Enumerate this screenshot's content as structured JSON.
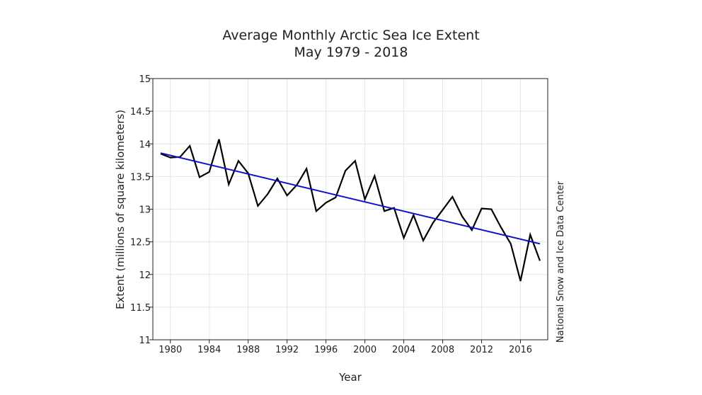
{
  "chart_data": {
    "type": "line",
    "title": "Average Monthly Arctic Sea Ice Extent",
    "subtitle": "May 1979 - 2018",
    "xlabel": "Year",
    "ylabel": "Extent (millions of square kilometers)",
    "credit": "National Snow and Ice Data Center",
    "xlim": [
      1978.2,
      2018.8
    ],
    "ylim": [
      11,
      15
    ],
    "x_ticks": [
      1980,
      1984,
      1988,
      1992,
      1996,
      2000,
      2004,
      2008,
      2012,
      2016
    ],
    "y_ticks": [
      11,
      11.5,
      12,
      12.5,
      13,
      13.5,
      14,
      14.5,
      15
    ],
    "y_tick_labels": [
      "11",
      "11.5",
      "12",
      "12.5",
      "13",
      "13.5",
      "14",
      "14.5",
      "15"
    ],
    "grid": true,
    "series": [
      {
        "name": "Extent",
        "color": "#000000",
        "x": [
          1979,
          1980,
          1981,
          1982,
          1983,
          1984,
          1985,
          1986,
          1987,
          1988,
          1989,
          1990,
          1991,
          1992,
          1993,
          1994,
          1995,
          1996,
          1997,
          1998,
          1999,
          2000,
          2001,
          2002,
          2003,
          2004,
          2005,
          2006,
          2007,
          2008,
          2009,
          2010,
          2011,
          2012,
          2013,
          2014,
          2015,
          2016,
          2017,
          2018
        ],
        "values": [
          13.85,
          13.79,
          13.8,
          13.97,
          13.49,
          13.57,
          14.07,
          13.38,
          13.74,
          13.55,
          13.05,
          13.23,
          13.47,
          13.21,
          13.37,
          13.62,
          12.97,
          13.1,
          13.18,
          13.59,
          13.74,
          13.15,
          13.51,
          12.97,
          13.02,
          12.56,
          12.91,
          12.52,
          12.79,
          12.99,
          13.19,
          12.89,
          12.68,
          13.01,
          13.0,
          12.72,
          12.47,
          11.9,
          12.61,
          12.21
        ]
      },
      {
        "name": "Linear trend",
        "color": "#1010c8",
        "x": [
          1979,
          2018
        ],
        "values": [
          13.86,
          12.47
        ]
      }
    ]
  }
}
